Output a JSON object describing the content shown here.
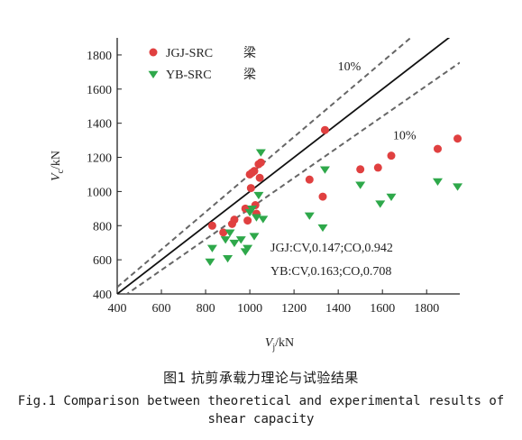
{
  "chart_data": {
    "type": "scatter",
    "xlabel": "V_j/kN",
    "ylabel": "V_c/kN",
    "xlim": [
      400,
      1950
    ],
    "ylim": [
      400,
      1900
    ],
    "xticks": [
      400,
      600,
      800,
      1000,
      1200,
      1400,
      1600,
      1800
    ],
    "yticks": [
      400,
      600,
      800,
      1000,
      1200,
      1400,
      1600,
      1800
    ],
    "grid": false,
    "legend_position": "top-left",
    "series": [
      {
        "name": "JGJ-SRC 梁",
        "color": "#e04040",
        "marker": "circle",
        "points": [
          [
            830,
            800
          ],
          [
            880,
            760
          ],
          [
            920,
            810
          ],
          [
            930,
            835
          ],
          [
            980,
            900
          ],
          [
            990,
            830
          ],
          [
            1000,
            1100
          ],
          [
            1005,
            1020
          ],
          [
            1010,
            1110
          ],
          [
            1020,
            1120
          ],
          [
            1025,
            920
          ],
          [
            1030,
            870
          ],
          [
            1040,
            1160
          ],
          [
            1045,
            1080
          ],
          [
            1050,
            1170
          ],
          [
            1270,
            1070
          ],
          [
            1330,
            970
          ],
          [
            1340,
            1360
          ],
          [
            1500,
            1130
          ],
          [
            1580,
            1140
          ],
          [
            1640,
            1210
          ],
          [
            1850,
            1250
          ],
          [
            1940,
            1310
          ]
        ]
      },
      {
        "name": "YB-SRC 梁",
        "color": "#2ea84a",
        "marker": "triangle-down",
        "points": [
          [
            820,
            590
          ],
          [
            830,
            670
          ],
          [
            890,
            720
          ],
          [
            900,
            610
          ],
          [
            910,
            760
          ],
          [
            930,
            700
          ],
          [
            960,
            720
          ],
          [
            980,
            650
          ],
          [
            990,
            670
          ],
          [
            1000,
            880
          ],
          [
            1010,
            900
          ],
          [
            1020,
            740
          ],
          [
            1030,
            850
          ],
          [
            1040,
            980
          ],
          [
            1050,
            1230
          ],
          [
            1060,
            840
          ],
          [
            1270,
            860
          ],
          [
            1330,
            790
          ],
          [
            1340,
            1130
          ],
          [
            1500,
            1040
          ],
          [
            1590,
            930
          ],
          [
            1640,
            970
          ],
          [
            1850,
            1060
          ],
          [
            1940,
            1030
          ]
        ]
      }
    ],
    "lines": [
      {
        "kind": "reference",
        "label": "",
        "style": "solid",
        "slope": 1.0
      },
      {
        "kind": "upper-bound",
        "label": "10%",
        "style": "dashed",
        "slope": 1.1
      },
      {
        "kind": "lower-bound",
        "label": "10%",
        "style": "dashed",
        "slope": 0.9
      }
    ],
    "annotations": [
      "JGJ:CV,0.147;CO,0.942",
      "YB:CV,0.163;CO,0.708"
    ]
  },
  "caption": {
    "zh": "图1  抗剪承载力理论与试验结果",
    "en_line1": "Fig.1  Comparison between theoretical and experimental results of",
    "en_line2": "shear capacity"
  }
}
